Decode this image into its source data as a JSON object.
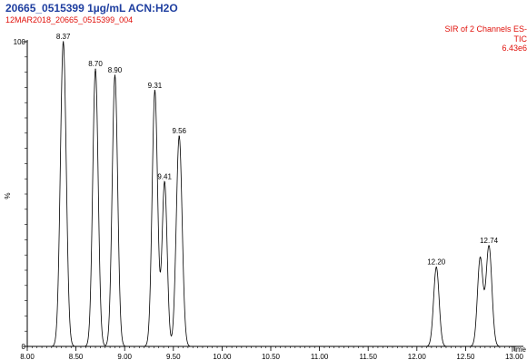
{
  "colors": {
    "title": "#1f3fa0",
    "annotation": "#e0100a",
    "trace": "#000000",
    "axis": "#000000"
  },
  "header": {
    "title": "20665_0515399 1µg/mL ACN:H2O",
    "subtitle": "12MAR2018_20665_0515399_004",
    "channel_info": "SIR of 2 Channels ES-",
    "trace_label": "TIC",
    "intensity": "6.43e6"
  },
  "chart_data": {
    "type": "line",
    "title": "20665_0515399 1µg/mL ACN:H2O",
    "xlabel": "Time",
    "ylabel": "%",
    "xlim": [
      8.0,
      13.0
    ],
    "ylim": [
      0,
      100
    ],
    "x_ticks": [
      "8.00",
      "8.50",
      "9.00",
      "9.50",
      "10.00",
      "10.50",
      "11.00",
      "11.50",
      "12.00",
      "12.50",
      "13.00"
    ],
    "y_ticks": [
      "0",
      "100"
    ],
    "grid": false,
    "peaks": [
      {
        "label": "8.37",
        "rt": 8.37,
        "height": 100,
        "width": 0.03
      },
      {
        "label": "8.70",
        "rt": 8.7,
        "height": 91,
        "width": 0.028
      },
      {
        "label": "8.90",
        "rt": 8.9,
        "height": 89,
        "width": 0.028
      },
      {
        "label": "9.31",
        "rt": 9.31,
        "height": 84,
        "width": 0.028
      },
      {
        "label": "9.41",
        "rt": 9.41,
        "height": 54,
        "width": 0.026
      },
      {
        "label": "9.56",
        "rt": 9.56,
        "height": 69,
        "width": 0.03
      },
      {
        "label": "12.20",
        "rt": 12.2,
        "height": 26,
        "width": 0.028
      },
      {
        "label": "",
        "rt": 12.65,
        "height": 29,
        "width": 0.028
      },
      {
        "label": "12.74",
        "rt": 12.74,
        "height": 33,
        "width": 0.03
      }
    ]
  }
}
